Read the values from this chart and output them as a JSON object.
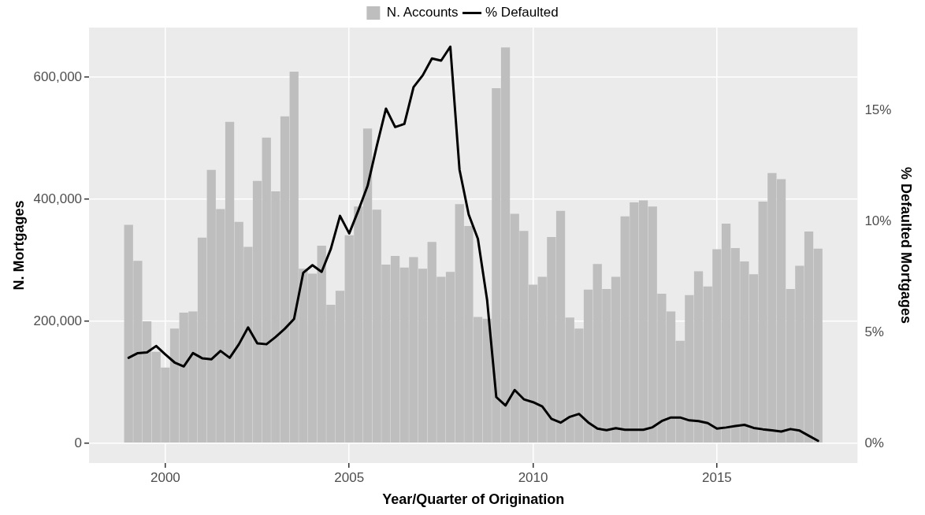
{
  "chart_data": {
    "type": "bar",
    "xlabel": "Year/Quarter of Origination",
    "ylabel": "N. Mortgages",
    "y2label": "% Defaulted Mortgages",
    "x": [
      1999,
      1999.25,
      1999.5,
      1999.75,
      2000,
      2000.25,
      2000.5,
      2000.75,
      2001,
      2001.25,
      2001.5,
      2001.75,
      2002,
      2002.25,
      2002.5,
      2002.75,
      2003,
      2003.25,
      2003.5,
      2003.75,
      2004,
      2004.25,
      2004.5,
      2004.75,
      2005,
      2005.25,
      2005.5,
      2005.75,
      2006,
      2006.25,
      2006.5,
      2006.75,
      2007,
      2007.25,
      2007.5,
      2007.75,
      2008,
      2008.25,
      2008.5,
      2008.75,
      2009,
      2009.25,
      2009.5,
      2009.75,
      2010,
      2010.25,
      2010.5,
      2010.75,
      2011,
      2011.25,
      2011.5,
      2011.75,
      2012,
      2012.25,
      2012.5,
      2012.75,
      2013,
      2013.25,
      2013.5,
      2013.75,
      2014,
      2014.25,
      2014.5,
      2014.75,
      2015,
      2015.25,
      2015.5,
      2015.75,
      2016,
      2016.25,
      2016.5,
      2016.75,
      2017,
      2017.25,
      2017.5,
      2017.75
    ],
    "series": [
      {
        "name": "N. Accounts",
        "color": "#bebebe",
        "values": [
          358000,
          299000,
          200000,
          150000,
          124000,
          188000,
          214000,
          216000,
          337000,
          448000,
          384000,
          527000,
          363000,
          322000,
          430000,
          501000,
          413000,
          536000,
          609000,
          286000,
          278000,
          324000,
          227000,
          250000,
          341000,
          388000,
          516000,
          383000,
          293000,
          307000,
          288000,
          305000,
          286000,
          330000,
          273000,
          281000,
          392000,
          356000,
          207000,
          204000,
          582000,
          649000,
          376000,
          348000,
          260000,
          273000,
          338000,
          381000,
          206000,
          188000,
          252000,
          294000,
          253000,
          273000,
          372000,
          395000,
          398000,
          388000,
          245000,
          216000,
          168000,
          243000,
          282000,
          257000,
          318000,
          360000,
          320000,
          298000,
          277000,
          396000,
          443000,
          433000,
          253000,
          291000,
          347000,
          319000
        ]
      },
      {
        "name": "% Defaulted",
        "type": "line",
        "color": "#000000",
        "axis": "y2",
        "values": [
          3.85,
          4.06,
          4.09,
          4.38,
          4.0,
          3.64,
          3.46,
          4.06,
          3.83,
          3.78,
          4.16,
          3.85,
          4.46,
          5.22,
          4.5,
          4.46,
          4.79,
          5.16,
          5.6,
          7.68,
          8.02,
          7.72,
          8.75,
          10.24,
          9.45,
          10.49,
          11.59,
          13.39,
          15.07,
          14.24,
          14.38,
          16.04,
          16.57,
          17.33,
          17.23,
          17.86,
          12.32,
          10.3,
          9.21,
          6.46,
          2.08,
          1.7,
          2.4,
          1.98,
          1.85,
          1.66,
          1.1,
          0.93,
          1.19,
          1.32,
          0.94,
          0.66,
          0.59,
          0.68,
          0.61,
          0.61,
          0.61,
          0.72,
          1.0,
          1.16,
          1.16,
          1.03,
          1.0,
          0.91,
          0.66,
          0.71,
          0.78,
          0.83,
          0.69,
          0.63,
          0.58,
          0.53,
          0.64,
          0.57,
          0.34,
          0.11
        ]
      }
    ],
    "xlim": [
      1997.925,
      2018.825
    ],
    "xticks": [
      2000,
      2005,
      2010,
      2015
    ],
    "ylim": [
      -32450,
      681450
    ],
    "yticks": [
      0,
      {
        "value": 200000,
        "label": "200,000"
      },
      {
        "value": 400000,
        "label": "400,000"
      },
      {
        "value": 600000,
        "label": "600,000"
      }
    ],
    "y2lim": [
      -0.89,
      18.72
    ],
    "y2ticks": [
      {
        "value": 0,
        "label": "0%"
      },
      {
        "value": 5,
        "label": "5%"
      },
      {
        "value": 10,
        "label": "10%"
      },
      {
        "value": 15,
        "label": "15%"
      }
    ],
    "grid": true,
    "legend": "top"
  }
}
